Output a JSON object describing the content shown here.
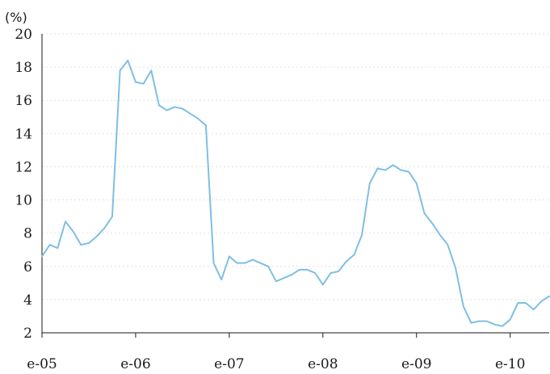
{
  "chart_data": {
    "type": "line",
    "ylabel": "(%)",
    "ylim": [
      2,
      20
    ],
    "yticks": [
      2,
      4,
      6,
      8,
      10,
      12,
      14,
      16,
      18,
      20
    ],
    "xlim": [
      0,
      65
    ],
    "xticks": [
      {
        "x": 0,
        "label": "e-05"
      },
      {
        "x": 12,
        "label": "e-06"
      },
      {
        "x": 24,
        "label": "e-07"
      },
      {
        "x": 36,
        "label": "e-08"
      },
      {
        "x": 48,
        "label": "e-09"
      },
      {
        "x": 60,
        "label": "e-10"
      }
    ],
    "grid": true,
    "series": [
      {
        "color": "#7fbfe3",
        "values": [
          6.6,
          7.3,
          7.1,
          8.7,
          8.1,
          7.3,
          7.4,
          7.8,
          8.3,
          9.0,
          17.8,
          18.4,
          17.1,
          17.0,
          17.8,
          15.7,
          15.4,
          15.6,
          15.5,
          15.2,
          14.9,
          14.5,
          6.2,
          5.2,
          6.6,
          6.2,
          6.2,
          6.4,
          6.2,
          6.0,
          5.1,
          5.3,
          5.5,
          5.8,
          5.8,
          5.6,
          4.9,
          5.6,
          5.7,
          6.3,
          6.7,
          7.9,
          11.0,
          11.9,
          11.8,
          12.1,
          11.8,
          11.7,
          11.0,
          9.2,
          8.6,
          7.9,
          7.3,
          5.9,
          3.6,
          2.6,
          2.7,
          2.7,
          2.5,
          2.4,
          2.8,
          3.8,
          3.8,
          3.4,
          3.9,
          4.2
        ]
      }
    ]
  }
}
